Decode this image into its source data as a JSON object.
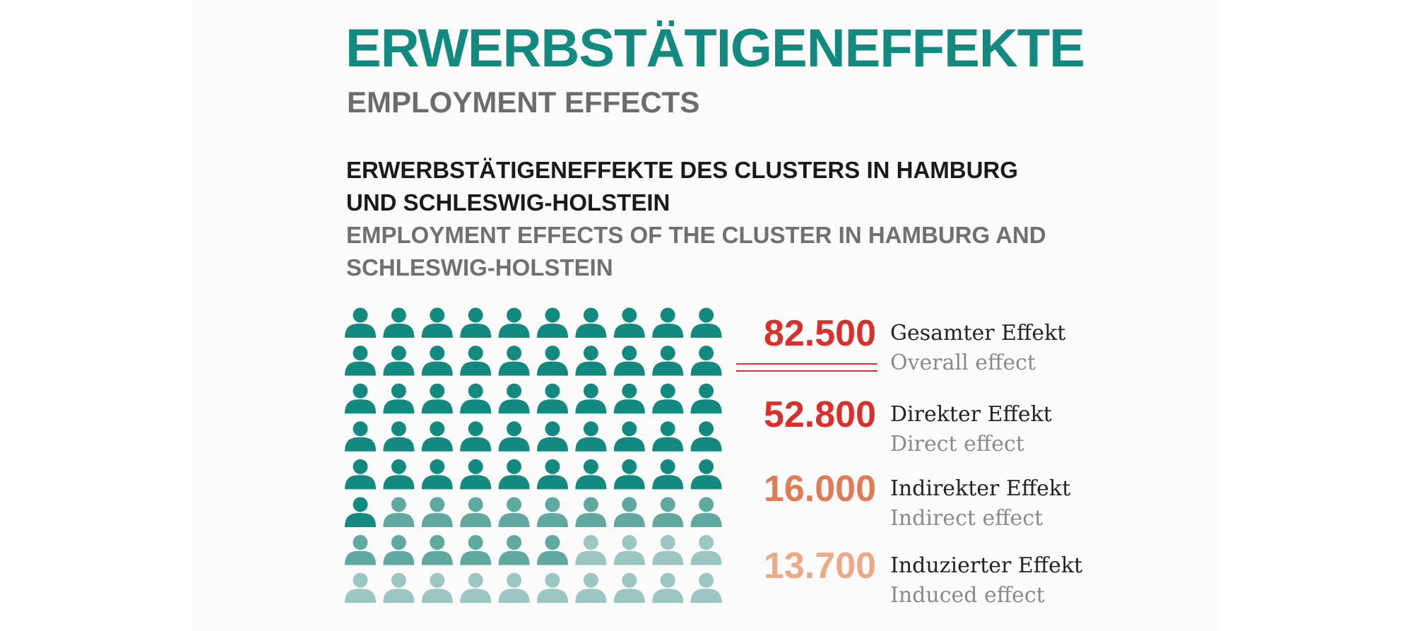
{
  "title": "ERWERBSTÄTIGENEFFEKTE",
  "subtitle": "EMPLOYMENT EFFECTS",
  "heading_de": "ERWERBSTÄTIGENEFFEKTE DES CLUSTERS IN HAMBURG UND SCHLESWIG-HOLSTEIN",
  "heading_en": "EMPLOYMENT EFFECTS OF THE CLUSTER IN HAMBURG AND SCHLESWIG-HOLSTEIN",
  "colors": {
    "title": "#138a80",
    "direct_icon": "#138a80",
    "indirect_icon": "#5fa9a1",
    "induced_icon": "#9cc6c1",
    "overall_value": "#d9302c",
    "direct_value": "#d9302c",
    "indirect_value": "#e07c55",
    "induced_value": "#eba985"
  },
  "icon": "person-icon",
  "chart_data": {
    "type": "pictogram",
    "grid": {
      "columns": 10,
      "rows": 8
    },
    "total": {
      "value": "82.500",
      "label_de": "Gesamter Effekt",
      "label_en": "Overall effect"
    },
    "series": [
      {
        "key": "direct",
        "value": "52.800",
        "label_de": "Direkter Effekt",
        "label_en": "Direct effect",
        "icons": 51
      },
      {
        "key": "indirect",
        "value": "16.000",
        "label_de": "Indirekter Effekt",
        "label_en": "Indirect effect",
        "icons": 15
      },
      {
        "key": "induced",
        "value": "13.700",
        "label_de": "Induzierter Effekt",
        "label_en": "Induced effect",
        "icons": 14
      }
    ]
  }
}
